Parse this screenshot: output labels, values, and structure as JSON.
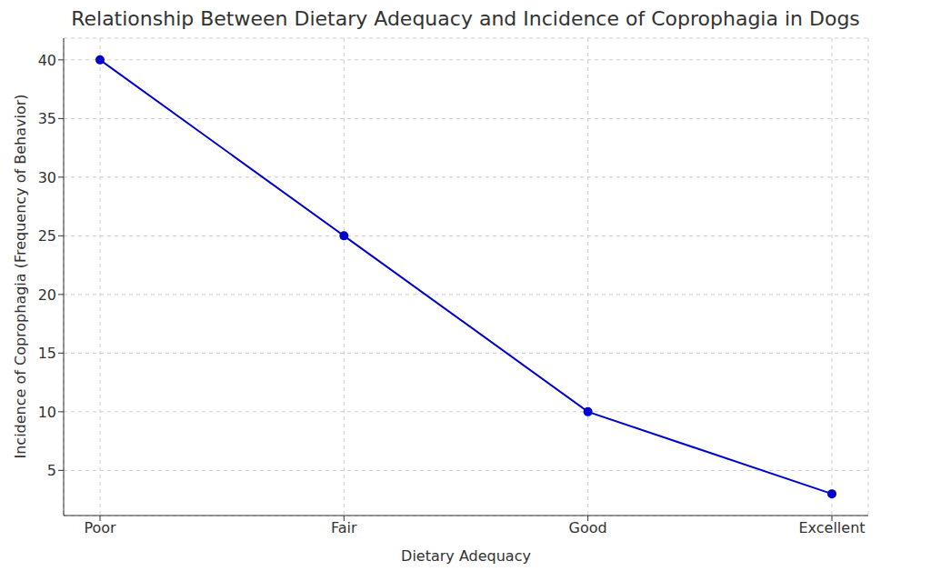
{
  "chart_data": {
    "type": "line",
    "title": "Relationship Between Dietary Adequacy and Incidence of Coprophagia in Dogs",
    "x_label": "Dietary Adequacy",
    "y_label": "Incidence of Coprophagia (Frequency of Behavior)",
    "categories": [
      "Poor",
      "Fair",
      "Good",
      "Excellent"
    ],
    "values": [
      40,
      25,
      10,
      3
    ],
    "color": "#0000cd",
    "marker": "circle",
    "line_style": "solid",
    "ylim": [
      1.15,
      41.85
    ],
    "yticks": [
      5,
      10,
      15,
      20,
      25,
      30,
      35,
      40
    ],
    "grid": true
  }
}
